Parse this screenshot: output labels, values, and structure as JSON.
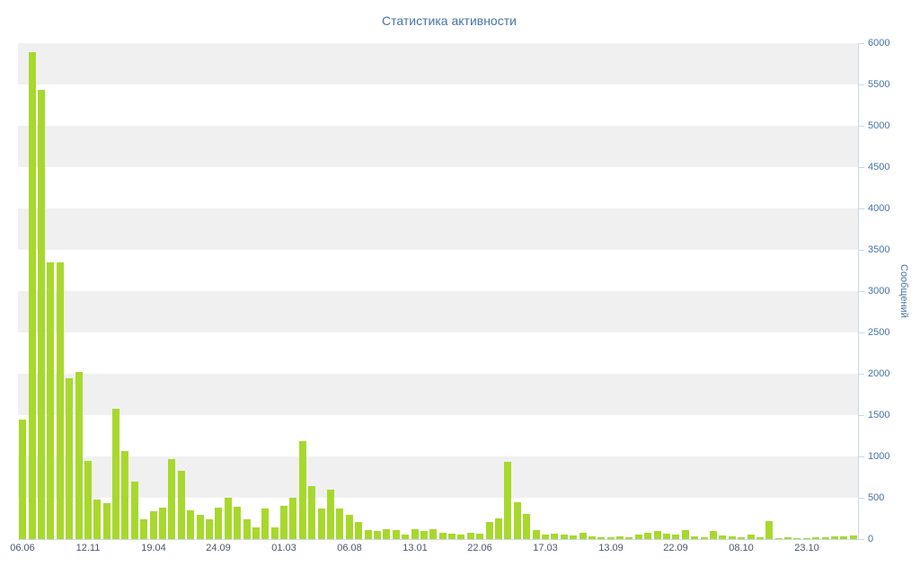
{
  "colors": {
    "bar": "#a8d82e",
    "band": "#f0f0f0",
    "axis_line": "#ccd6eb",
    "title_text": "#4673a8",
    "y_label_text": "#4673a8",
    "y_title_text": "#4673a8",
    "x_label_text": "#4a566e",
    "background": "#ffffff"
  },
  "chart_data": {
    "type": "bar",
    "title": "Статистика активности",
    "xlabel": "",
    "ylabel": "Сообщений",
    "ylim": [
      0,
      6000
    ],
    "y_tick_step": 500,
    "y_ticks": [
      0,
      500,
      1000,
      1500,
      2000,
      2500,
      3000,
      3500,
      4000,
      4500,
      5000,
      5500,
      6000
    ],
    "x_tick_labels": [
      "06.06",
      "12.11",
      "19.04",
      "24.09",
      "01.03",
      "06.08",
      "13.01",
      "22.06",
      "17.03",
      "13.09",
      "22.09",
      "08.10",
      "23.10"
    ],
    "x_tick_every": 7,
    "grid": "alternating-horizontal-bands",
    "legend": "none",
    "values": [
      1450,
      5890,
      5440,
      3350,
      3350,
      1950,
      2020,
      950,
      480,
      430,
      1580,
      1060,
      700,
      240,
      340,
      380,
      970,
      830,
      350,
      295,
      240,
      380,
      500,
      390,
      240,
      140,
      370,
      140,
      400,
      500,
      1190,
      640,
      370,
      600,
      370,
      295,
      210,
      110,
      100,
      120,
      110,
      55,
      120,
      100,
      120,
      75,
      65,
      55,
      75,
      65,
      210,
      250,
      940,
      450,
      305,
      110,
      55,
      65,
      55,
      45,
      75,
      35,
      20,
      20,
      35,
      20,
      55,
      75,
      100,
      65,
      55,
      110,
      35,
      20,
      100,
      45,
      35,
      20,
      55,
      20,
      220,
      10,
      20,
      10,
      15,
      20,
      25,
      30,
      35,
      45
    ]
  }
}
